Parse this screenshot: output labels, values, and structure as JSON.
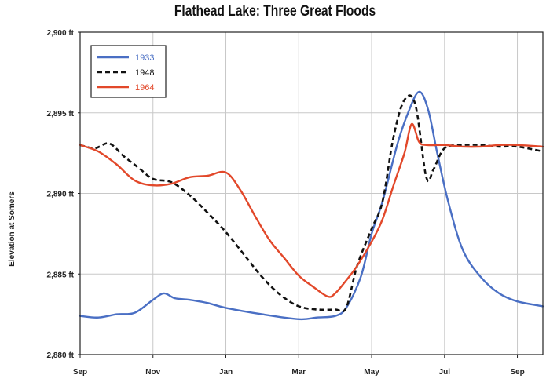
{
  "chart_data": {
    "type": "line",
    "title": "Flathead Lake: Three Great Floods",
    "xlabel": "",
    "ylabel": "Elevation at Somers",
    "x_ticks": [
      "Sep",
      "Nov",
      "Jan",
      "Mar",
      "May",
      "Jul",
      "Sep"
    ],
    "y_ticks": [
      "2,880 ft",
      "2,885 ft",
      "2,890 ft",
      "2,895 ft",
      "2,900 ft"
    ],
    "xlim": [
      0,
      12.7
    ],
    "ylim": [
      2880,
      2900
    ],
    "x_unit_note": "months since Sep",
    "grid": true,
    "legend_position": "top-left",
    "series": [
      {
        "name": "1933",
        "color": "#4a6fc4",
        "style": "solid",
        "x": [
          0,
          0.5,
          1.0,
          1.5,
          2.0,
          2.3,
          2.6,
          3.0,
          3.5,
          4.0,
          5.0,
          6.0,
          6.5,
          7.0,
          7.3,
          7.7,
          8.0,
          8.3,
          8.7,
          9.0,
          9.3,
          9.55,
          9.8,
          10.1,
          10.5,
          11.0,
          11.5,
          12.0,
          12.7
        ],
        "y": [
          2882.4,
          2882.3,
          2882.5,
          2882.6,
          2883.4,
          2883.8,
          2883.5,
          2883.4,
          2883.2,
          2882.9,
          2882.5,
          2882.2,
          2882.3,
          2882.4,
          2882.9,
          2884.8,
          2887.5,
          2889.5,
          2893.0,
          2895.0,
          2896.3,
          2895.2,
          2892.5,
          2889.5,
          2886.5,
          2884.8,
          2883.8,
          2883.3,
          2883.0
        ]
      },
      {
        "name": "1948",
        "color": "#111111",
        "style": "dashed",
        "x": [
          0,
          0.4,
          0.8,
          1.2,
          1.6,
          2.0,
          2.5,
          3.0,
          3.5,
          4.0,
          4.5,
          5.0,
          5.5,
          6.0,
          6.5,
          7.0,
          7.3,
          7.6,
          8.0,
          8.3,
          8.6,
          8.9,
          9.2,
          9.5,
          9.7,
          10.0,
          10.5,
          11.0,
          11.5,
          12.0,
          12.7
        ],
        "y": [
          2893.0,
          2892.8,
          2893.1,
          2892.3,
          2891.6,
          2890.9,
          2890.7,
          2889.9,
          2888.8,
          2887.6,
          2886.2,
          2884.8,
          2883.7,
          2883.0,
          2882.8,
          2882.8,
          2882.9,
          2885.5,
          2887.8,
          2889.5,
          2893.5,
          2895.8,
          2895.5,
          2891.0,
          2891.5,
          2892.8,
          2893.0,
          2893.0,
          2892.9,
          2892.9,
          2892.6
        ]
      },
      {
        "name": "1964",
        "color": "#e2482a",
        "style": "solid",
        "x": [
          0,
          0.5,
          1.0,
          1.5,
          2.0,
          2.5,
          3.0,
          3.5,
          4.0,
          4.4,
          4.8,
          5.2,
          5.6,
          6.0,
          6.4,
          6.8,
          7.0,
          7.3,
          7.6,
          8.0,
          8.3,
          8.6,
          8.9,
          9.1,
          9.3,
          9.5,
          10.0,
          10.5,
          11.0,
          11.5,
          12.0,
          12.7
        ],
        "y": [
          2893.0,
          2892.6,
          2891.8,
          2890.8,
          2890.5,
          2890.6,
          2891.0,
          2891.1,
          2891.3,
          2890.2,
          2888.6,
          2887.1,
          2886.0,
          2884.9,
          2884.2,
          2883.6,
          2883.8,
          2884.6,
          2885.5,
          2887.0,
          2888.4,
          2890.5,
          2892.5,
          2894.3,
          2893.2,
          2893.0,
          2893.0,
          2892.9,
          2892.9,
          2893.0,
          2893.0,
          2892.9
        ]
      }
    ]
  }
}
